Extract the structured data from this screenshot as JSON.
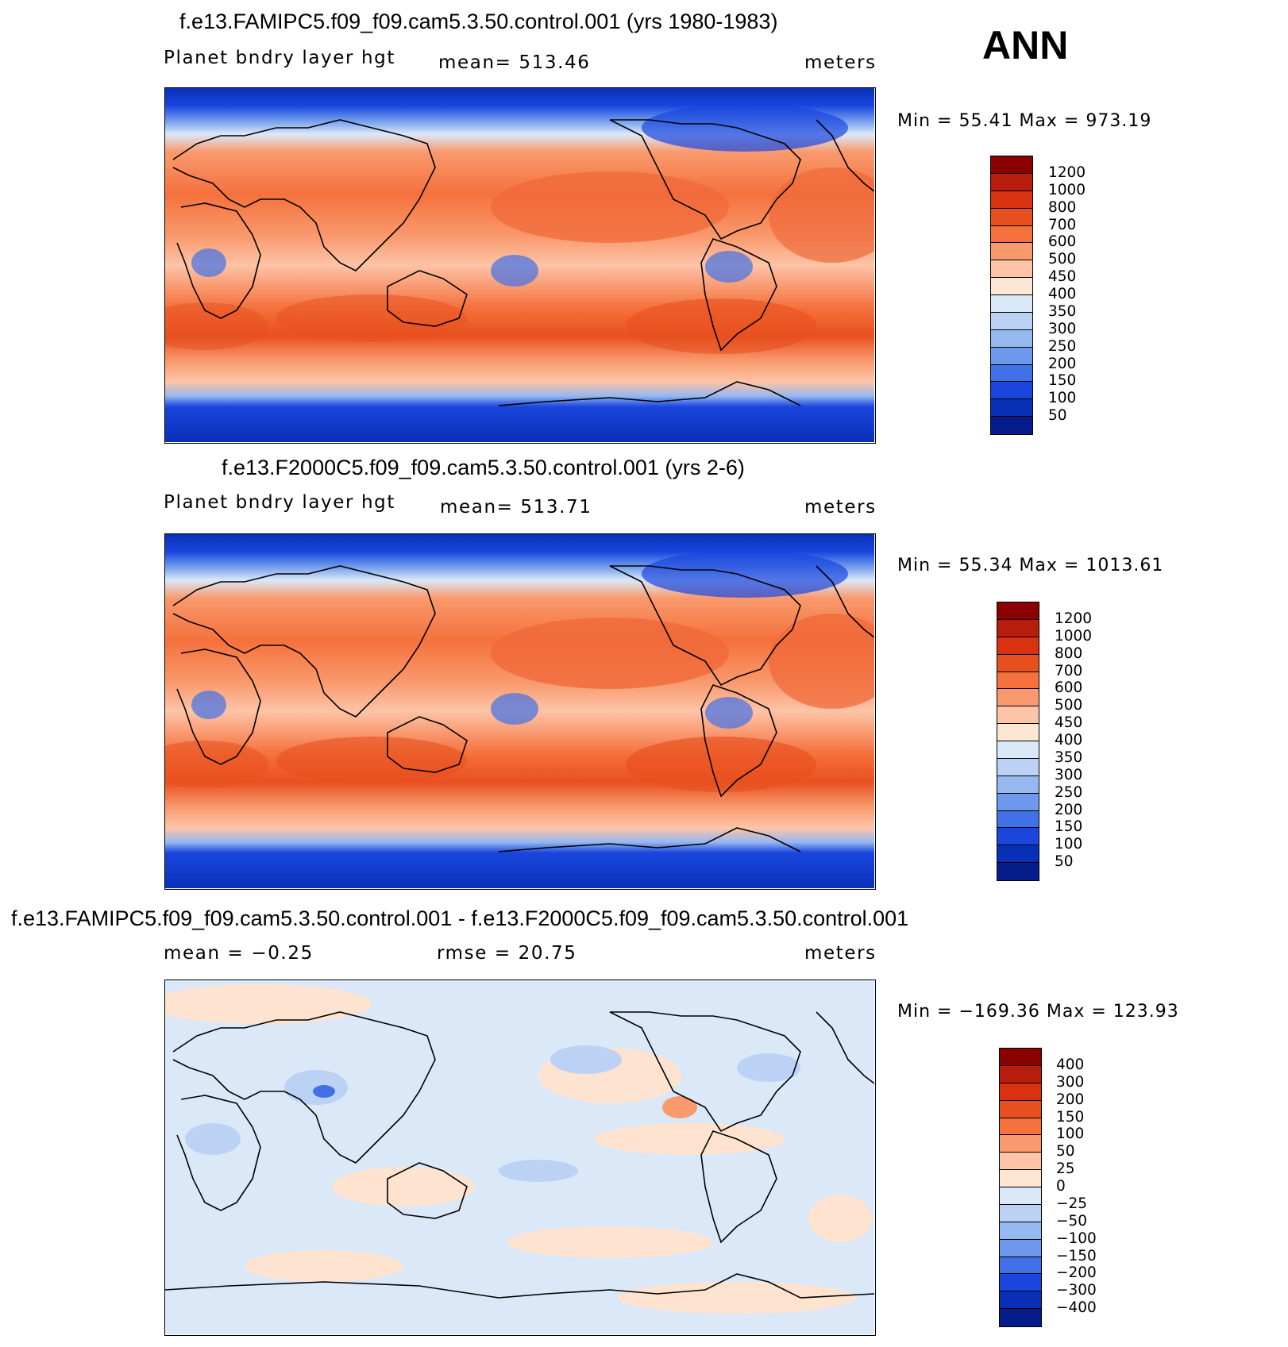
{
  "season": "ANN",
  "panels": [
    {
      "id": "top",
      "title": "f.e13.FAMIPC5.f09_f09.cam5.3.50.control.001 (yrs 1980-1983)",
      "left": "Planet bndry layer hgt",
      "center": "mean=  513.46",
      "right": "meters",
      "minmax": "Min =   55.41  Max  =  973.19",
      "colorbar_labels": [
        "1200",
        "1000",
        "800",
        "700",
        "600",
        "500",
        "450",
        "400",
        "350",
        "300",
        "250",
        "200",
        "150",
        "100",
        "50"
      ],
      "colorbar_colors": [
        "#8b0000",
        "#b81c0c",
        "#d93211",
        "#e8501f",
        "#f5713d",
        "#f99a6e",
        "#fdc4a7",
        "#fde6d4",
        "#dbe8f8",
        "#bbd2f5",
        "#96b8f1",
        "#6d98ec",
        "#4271e7",
        "#1a46de",
        "#0830b6",
        "#051c8a"
      ]
    },
    {
      "id": "middle",
      "title": "f.e13.F2000C5.f09_f09.cam5.3.50.control.001 (yrs 2-6)",
      "left": "Planet bndry layer hgt",
      "center": "mean=  513.71",
      "right": "meters",
      "minmax": "Min =   55.34  Max  =  1013.61",
      "colorbar_labels": [
        "1200",
        "1000",
        "800",
        "700",
        "600",
        "500",
        "450",
        "400",
        "350",
        "300",
        "250",
        "200",
        "150",
        "100",
        "50"
      ],
      "colorbar_colors": [
        "#8b0000",
        "#b81c0c",
        "#d93211",
        "#e8501f",
        "#f5713d",
        "#f99a6e",
        "#fdc4a7",
        "#fde6d4",
        "#dbe8f8",
        "#bbd2f5",
        "#96b8f1",
        "#6d98ec",
        "#4271e7",
        "#1a46de",
        "#0830b6",
        "#051c8a"
      ]
    },
    {
      "id": "difference",
      "title": "f.e13.FAMIPC5.f09_f09.cam5.3.50.control.001 - f.e13.F2000C5.f09_f09.cam5.3.50.control.001",
      "left": "mean =   −0.25",
      "center": "rmse =   20.75",
      "right": "meters",
      "minmax": "Min  =  −169.36  Max  =  123.93",
      "colorbar_labels": [
        "400",
        "300",
        "200",
        "150",
        "100",
        "50",
        "25",
        "0",
        "−25",
        "−50",
        "−100",
        "−150",
        "−200",
        "−300",
        "−400"
      ],
      "colorbar_colors": [
        "#8b0000",
        "#b81c0c",
        "#d93211",
        "#e8501f",
        "#f5713d",
        "#f99a6e",
        "#fdc4a7",
        "#fde6d4",
        "#dbe8f8",
        "#bbd2f5",
        "#96b8f1",
        "#6d98ec",
        "#4271e7",
        "#1a46de",
        "#0830b6",
        "#051c8a"
      ]
    }
  ],
  "map_palette": {
    "ocean_high": "#f0693a",
    "ocean_mid": "#f79a72",
    "ocean_light": "#fdc4a7",
    "polar_mid": "#4271e7",
    "polar_dark": "#0830b6",
    "diff_base": "#dbe8f8",
    "diff_warm": "#fde3d0",
    "diff_cool": "#bbd2f5",
    "coastline": "#000000"
  }
}
